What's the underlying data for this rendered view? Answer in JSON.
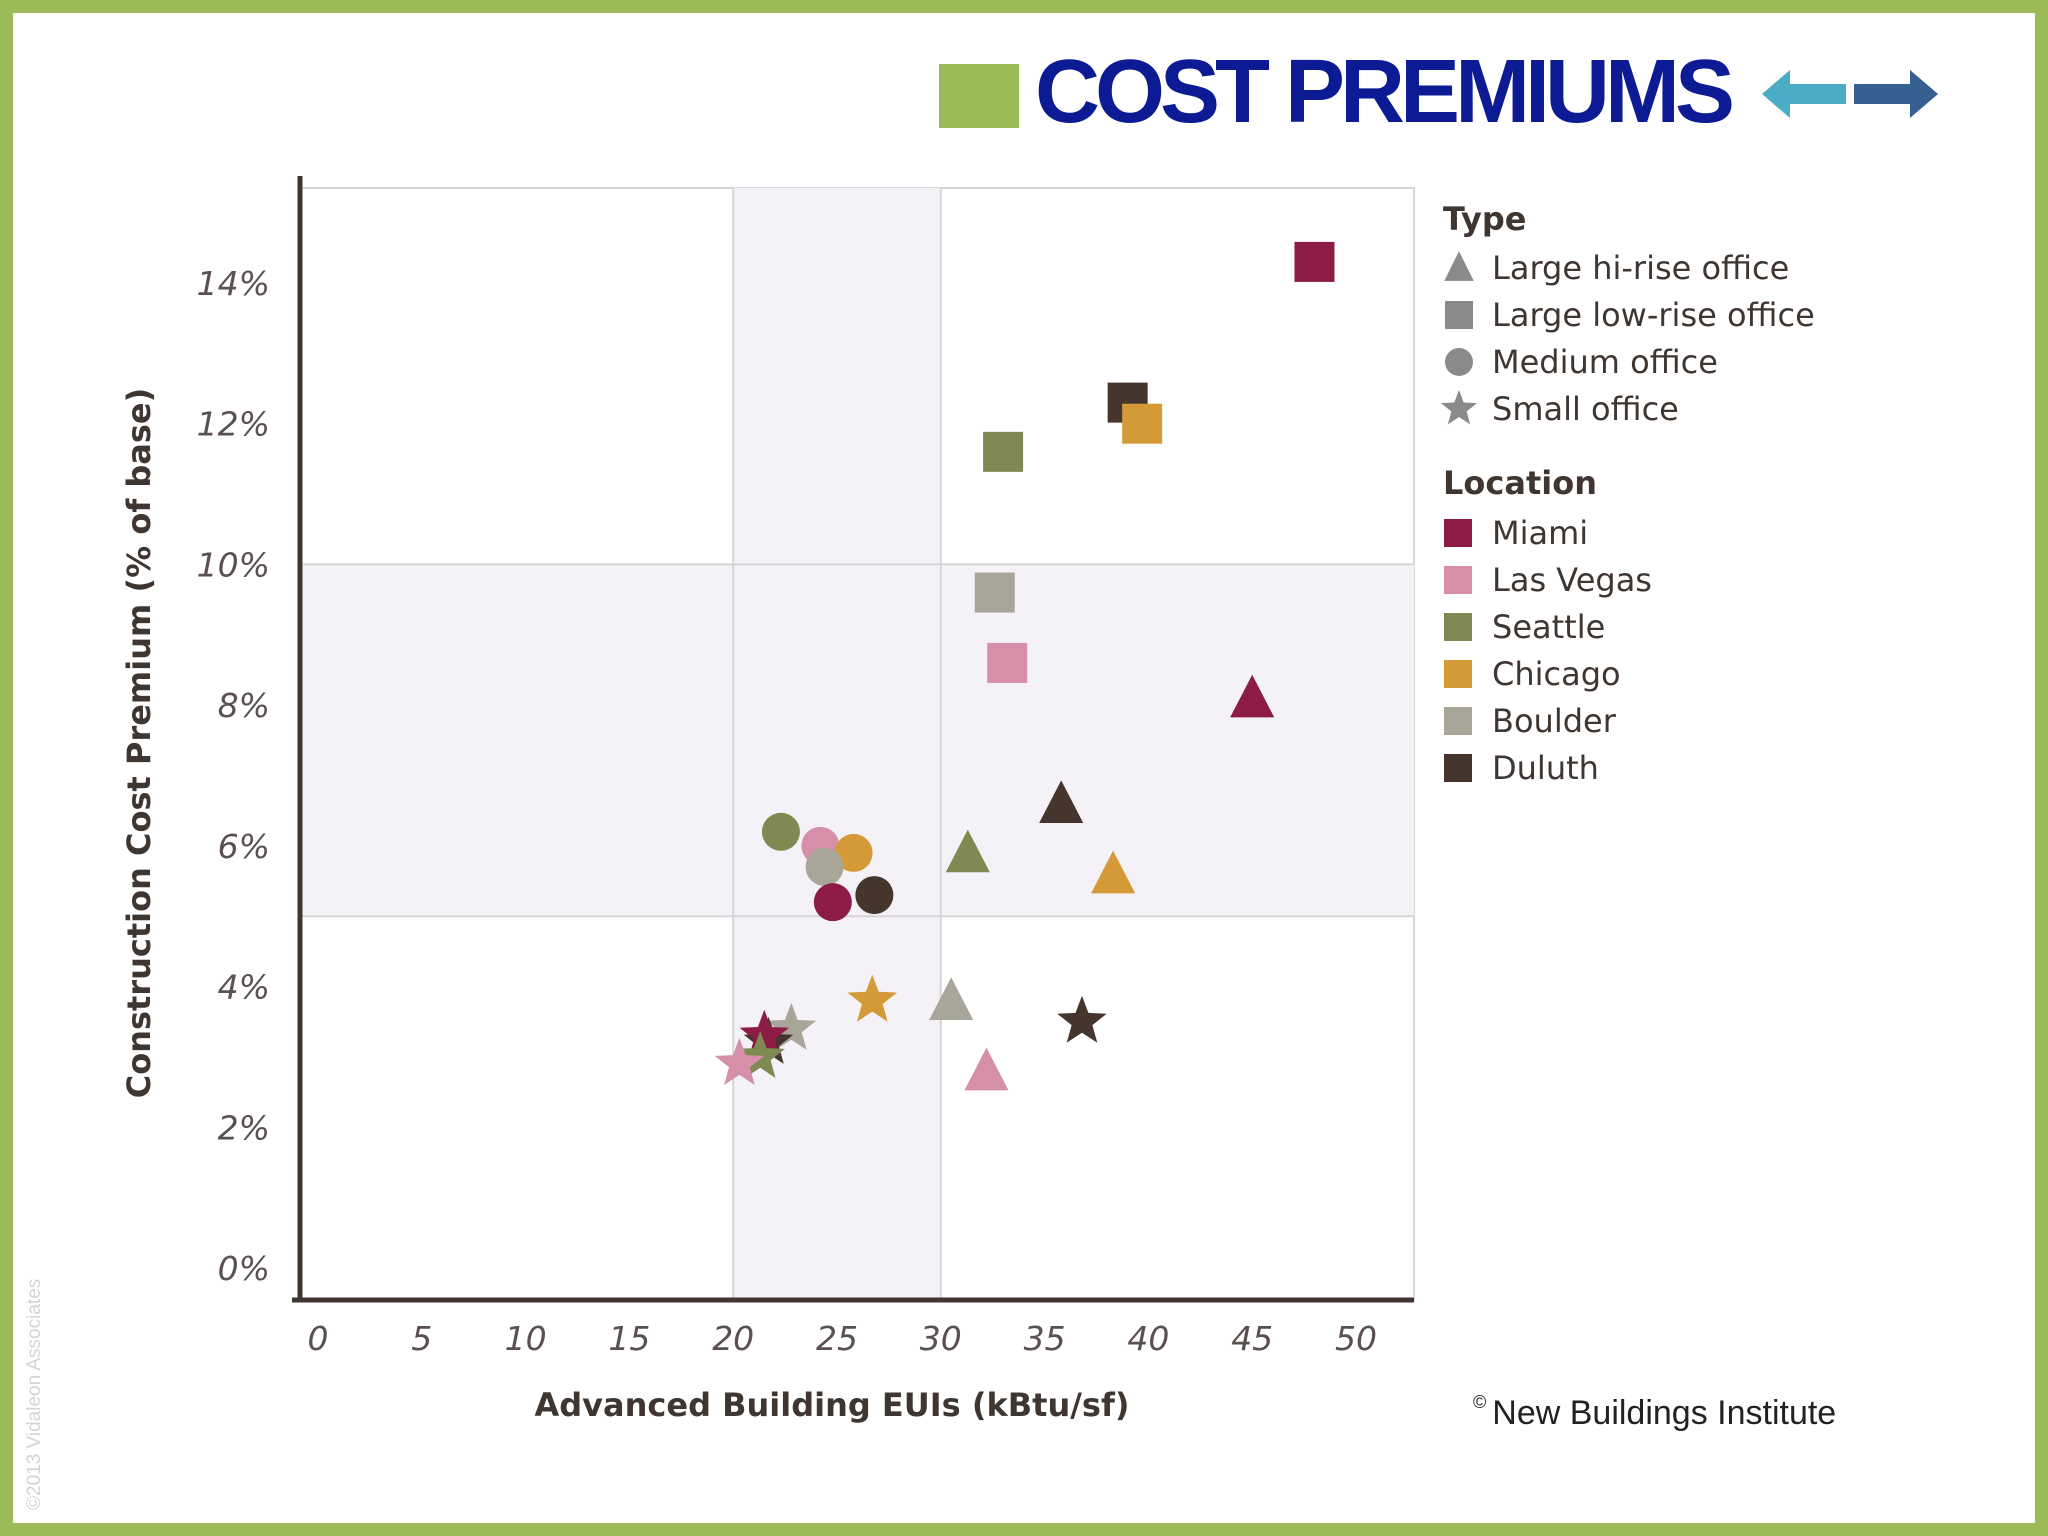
{
  "slide": {
    "title": "COST PREMIUMS",
    "copyright": "New Buildings Institute",
    "copyright_symbol": "©",
    "watermark": "©2013 Vidaleon Associates"
  },
  "chart_data": {
    "type": "scatter",
    "xlabel": "Advanced Building EUIs (kBtu/sf)",
    "ylabel": "Construction Cost Premium (% of base)",
    "xlim": [
      0,
      50
    ],
    "ylim": [
      0,
      14
    ],
    "x_ticks": [
      "0",
      "5",
      "10",
      "15",
      "20",
      "25",
      "30",
      "35",
      "40",
      "45",
      "50"
    ],
    "y_ticks": [
      "0%",
      "2%",
      "4%",
      "6%",
      "8%",
      "10%",
      "12%",
      "14%"
    ],
    "highlight_band_x": [
      20,
      30
    ],
    "highlight_band_y": [
      5,
      10
    ],
    "grid": false,
    "legend_position": "right",
    "type_legend": {
      "title": "Type",
      "items": [
        {
          "label": "Large hi-rise office",
          "marker": "triangle"
        },
        {
          "label": "Large low-rise office",
          "marker": "square"
        },
        {
          "label": "Medium office",
          "marker": "circle"
        },
        {
          "label": "Small office",
          "marker": "star"
        }
      ]
    },
    "location_legend": {
      "title": "Location",
      "items": [
        {
          "label": "Miami",
          "color": "#8c1c45"
        },
        {
          "label": "Las Vegas",
          "color": "#d58fa9"
        },
        {
          "label": "Seattle",
          "color": "#7f8a52"
        },
        {
          "label": "Chicago",
          "color": "#d49a38"
        },
        {
          "label": "Boulder",
          "color": "#a7a698"
        },
        {
          "label": "Duluth",
          "color": "#45352c"
        }
      ]
    },
    "points": [
      {
        "type": "square",
        "location": "Miami",
        "x": 48,
        "y": 14.3
      },
      {
        "type": "square",
        "location": "Duluth",
        "x": 39,
        "y": 12.3
      },
      {
        "type": "square",
        "location": "Chicago",
        "x": 39.7,
        "y": 12.0
      },
      {
        "type": "square",
        "location": "Seattle",
        "x": 33,
        "y": 11.6
      },
      {
        "type": "square",
        "location": "Boulder",
        "x": 32.6,
        "y": 9.6
      },
      {
        "type": "square",
        "location": "Las Vegas",
        "x": 33.2,
        "y": 8.6
      },
      {
        "type": "triangle",
        "location": "Miami",
        "x": 45,
        "y": 8.1
      },
      {
        "type": "triangle",
        "location": "Duluth",
        "x": 35.8,
        "y": 6.6
      },
      {
        "type": "triangle",
        "location": "Seattle",
        "x": 31.3,
        "y": 5.9
      },
      {
        "type": "triangle",
        "location": "Chicago",
        "x": 38.3,
        "y": 5.6
      },
      {
        "type": "triangle",
        "location": "Boulder",
        "x": 30.5,
        "y": 3.8
      },
      {
        "type": "triangle",
        "location": "Las Vegas",
        "x": 32.2,
        "y": 2.8
      },
      {
        "type": "circle",
        "location": "Seattle",
        "x": 22.3,
        "y": 6.2
      },
      {
        "type": "circle",
        "location": "Las Vegas",
        "x": 24.2,
        "y": 6.0
      },
      {
        "type": "circle",
        "location": "Chicago",
        "x": 25.8,
        "y": 5.9
      },
      {
        "type": "circle",
        "location": "Boulder",
        "x": 24.4,
        "y": 5.7
      },
      {
        "type": "circle",
        "location": "Miami",
        "x": 24.8,
        "y": 5.2
      },
      {
        "type": "circle",
        "location": "Duluth",
        "x": 26.8,
        "y": 5.3
      },
      {
        "type": "star",
        "location": "Chicago",
        "x": 26.7,
        "y": 3.8
      },
      {
        "type": "star",
        "location": "Duluth",
        "x": 36.8,
        "y": 3.5
      },
      {
        "type": "star",
        "location": "Boulder",
        "x": 22.8,
        "y": 3.4
      },
      {
        "type": "star",
        "location": "Duluth",
        "x": 21.7,
        "y": 3.2
      },
      {
        "type": "star",
        "location": "Miami",
        "x": 21.5,
        "y": 3.3
      },
      {
        "type": "star",
        "location": "Seattle",
        "x": 21.3,
        "y": 3.0
      },
      {
        "type": "star",
        "location": "Las Vegas",
        "x": 20.3,
        "y": 2.9
      }
    ]
  }
}
